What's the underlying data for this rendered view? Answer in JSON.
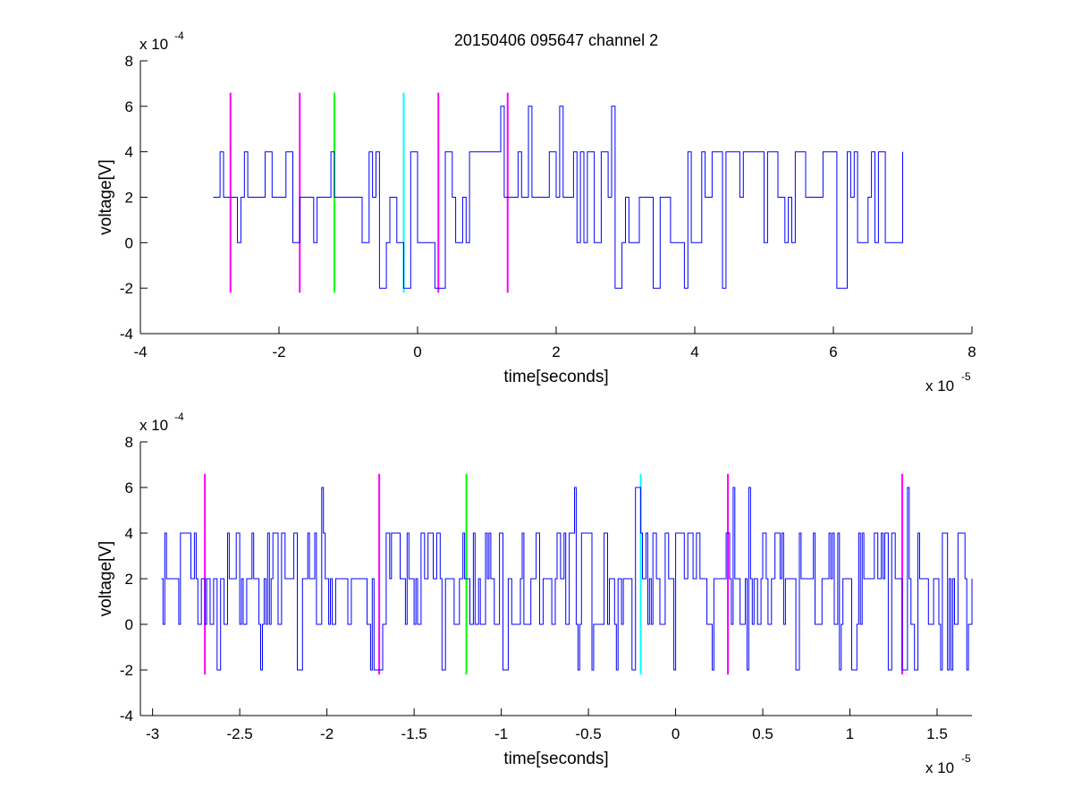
{
  "chart_data": [
    {
      "type": "line",
      "title": "20150406 095647 channel 2",
      "xlabel": "time[seconds]",
      "ylabel": "voltage[V]",
      "x_multiplier": "x 10",
      "x_exponent": "-5",
      "y_multiplier": "x 10",
      "y_exponent": "-4",
      "xlim": [
        -4,
        8
      ],
      "ylim": [
        -4,
        8
      ],
      "xticks": [
        -4,
        -2,
        0,
        2,
        4,
        6,
        8
      ],
      "xtick_labels": [
        "-4",
        "-2",
        "0",
        "2",
        "4",
        "6",
        "8"
      ],
      "yticks": [
        -4,
        -2,
        0,
        2,
        4,
        6,
        8
      ],
      "ytick_labels": [
        "-4",
        "-2",
        "0",
        "2",
        "4",
        "6",
        "8"
      ],
      "grid": false,
      "legend": "none",
      "signal": {
        "color": "#0000ff",
        "x_start": -2.95,
        "x_end": 7.0,
        "step": 0.05,
        "seed": 11,
        "levels": [
          -2,
          0,
          2,
          4,
          6
        ]
      },
      "markers": [
        {
          "x": -2.7,
          "ymin": -2.2,
          "ymax": 6.6,
          "color": "#ff00ff"
        },
        {
          "x": -1.7,
          "ymin": -2.2,
          "ymax": 6.6,
          "color": "#ff00ff"
        },
        {
          "x": -1.2,
          "ymin": -2.2,
          "ymax": 6.6,
          "color": "#00ff00"
        },
        {
          "x": -0.2,
          "ymin": -2.2,
          "ymax": 6.6,
          "color": "#00ffff"
        },
        {
          "x": 0.3,
          "ymin": -2.2,
          "ymax": 6.6,
          "color": "#ff00ff"
        },
        {
          "x": 1.3,
          "ymin": -2.2,
          "ymax": 6.6,
          "color": "#ff00ff"
        }
      ]
    },
    {
      "type": "line",
      "title": "",
      "xlabel": "time[seconds]",
      "ylabel": "voltage[V]",
      "x_multiplier": "x 10",
      "x_exponent": "-5",
      "y_multiplier": "x 10",
      "y_exponent": "-4",
      "xlim": [
        -3.07,
        1.7
      ],
      "ylim": [
        -4,
        8
      ],
      "xticks": [
        -3,
        -2.5,
        -2,
        -1.5,
        -1,
        -0.5,
        0,
        0.5,
        1,
        1.5
      ],
      "xtick_labels": [
        "-3",
        "-2.5",
        "-2",
        "-1.5",
        "-1",
        "-0.5",
        "0",
        "0.5",
        "1",
        "1.5"
      ],
      "yticks": [
        -4,
        -2,
        0,
        2,
        4,
        6,
        8
      ],
      "ytick_labels": [
        "-4",
        "-2",
        "0",
        "2",
        "4",
        "6",
        "8"
      ],
      "grid": false,
      "legend": "none",
      "signal": {
        "color": "#0000ff",
        "x_start": -2.95,
        "x_end": 1.7,
        "step": 0.01,
        "seed": 23,
        "levels": [
          -2,
          0,
          2,
          4,
          6
        ]
      },
      "markers": [
        {
          "x": -2.7,
          "ymin": -2.2,
          "ymax": 6.6,
          "color": "#ff00ff"
        },
        {
          "x": -1.7,
          "ymin": -2.2,
          "ymax": 6.6,
          "color": "#ff00ff"
        },
        {
          "x": -1.2,
          "ymin": -2.2,
          "ymax": 6.6,
          "color": "#00ff00"
        },
        {
          "x": -0.2,
          "ymin": -2.2,
          "ymax": 6.6,
          "color": "#00ffff"
        },
        {
          "x": 0.3,
          "ymin": -2.2,
          "ymax": 6.6,
          "color": "#ff00ff"
        },
        {
          "x": 1.3,
          "ymin": -2.2,
          "ymax": 6.6,
          "color": "#ff00ff"
        }
      ]
    }
  ]
}
